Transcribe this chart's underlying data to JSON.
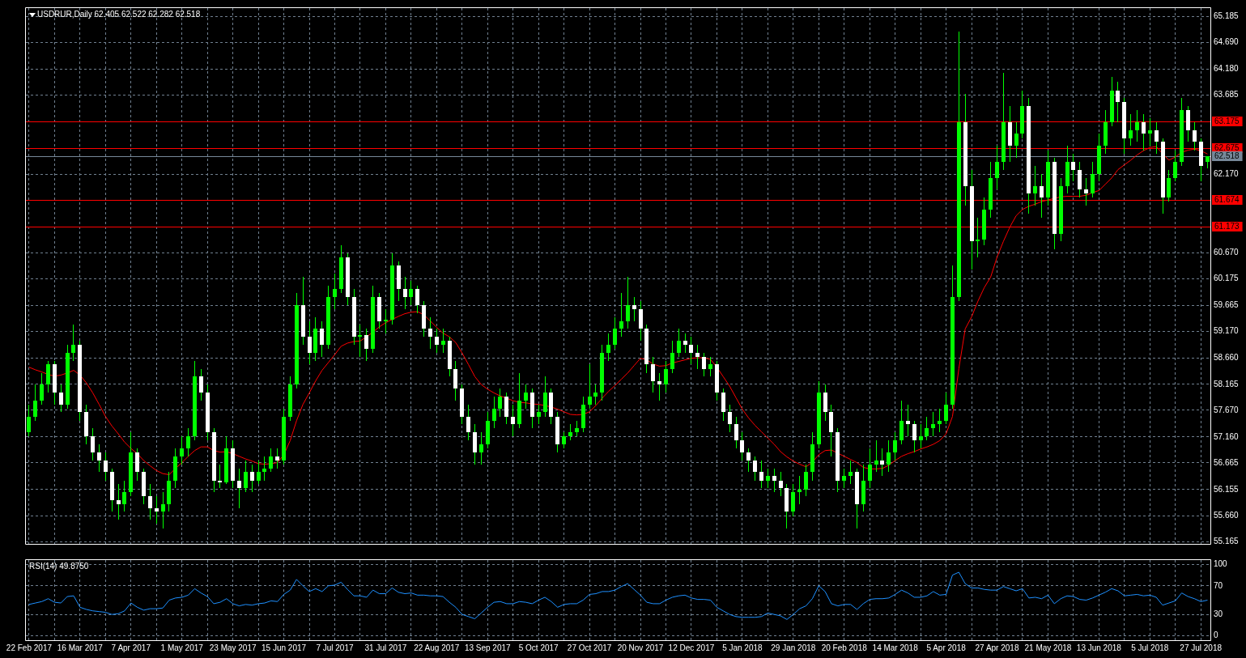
{
  "chart_data": [
    {
      "type": "candlestick",
      "title": "USDRUR,Daily 62.405 62.522 62.282 62.518",
      "color": "#00ff00",
      "tick_labels": "y",
      "grid": true,
      "categories": [
        null,
        null,
        null,
        null,
        null,
        null,
        null,
        null,
        null,
        null,
        null,
        null,
        null,
        null,
        null,
        null,
        null,
        null,
        null,
        null,
        null,
        null,
        null,
        null,
        null,
        null,
        null,
        null,
        null,
        null,
        null,
        null,
        null,
        null,
        null,
        null,
        null,
        null,
        null,
        null,
        null,
        null,
        null,
        null,
        null,
        null,
        null,
        null,
        null,
        null,
        null,
        null,
        null,
        null,
        null,
        null,
        null,
        null,
        null,
        null,
        null,
        null,
        null,
        null,
        null,
        null,
        null,
        null,
        null,
        null,
        null,
        null,
        null,
        null,
        null,
        null,
        null,
        null,
        null,
        null,
        null,
        null,
        null,
        null,
        null,
        null,
        null,
        null,
        null,
        null,
        null,
        null,
        null,
        null,
        null,
        null,
        null,
        null,
        null,
        null,
        null,
        null,
        null,
        null,
        null,
        null,
        null,
        null,
        null,
        null,
        null,
        null,
        null,
        null,
        null,
        null,
        null,
        null,
        null,
        null,
        null,
        null,
        null,
        null,
        null,
        null,
        null,
        null,
        null,
        null,
        null,
        null,
        null,
        null,
        null,
        null,
        null,
        null,
        null,
        null,
        null,
        null,
        null,
        null,
        null,
        null,
        null,
        null,
        null,
        null,
        null,
        null,
        null,
        null,
        null,
        null,
        null,
        null,
        null,
        null,
        null,
        null,
        null,
        null,
        null,
        null,
        null,
        null,
        null,
        null,
        null,
        null,
        null,
        null,
        null,
        null,
        null,
        null,
        null,
        null,
        null,
        null,
        null,
        null,
        null,
        null
      ],
      "ohlc": [
        [
          57.25,
          57.78,
          57.17,
          57.55
        ],
        [
          57.55,
          58.16,
          57.47,
          57.85
        ],
        [
          57.85,
          58.38,
          57.78,
          58.16
        ],
        [
          58.16,
          58.61,
          58.0,
          58.54
        ],
        [
          58.54,
          58.61,
          57.78,
          58.0
        ],
        [
          58.0,
          58.16,
          57.63,
          57.78
        ],
        [
          57.78,
          58.92,
          57.7,
          58.76
        ],
        [
          58.76,
          59.3,
          58.61,
          58.92
        ],
        [
          58.92,
          58.99,
          57.47,
          57.63
        ],
        [
          57.63,
          57.78,
          57.02,
          57.17
        ],
        [
          57.17,
          57.32,
          56.71,
          56.87
        ],
        [
          56.87,
          57.02,
          56.49,
          56.71
        ],
        [
          56.71,
          56.87,
          56.33,
          56.49
        ],
        [
          56.49,
          56.56,
          55.73,
          55.96
        ],
        [
          55.96,
          56.26,
          55.58,
          55.88
        ],
        [
          55.88,
          56.33,
          55.73,
          56.11
        ],
        [
          56.11,
          57.25,
          56.03,
          56.87
        ],
        [
          56.87,
          56.94,
          56.33,
          56.49
        ],
        [
          56.49,
          56.56,
          55.88,
          56.03
        ],
        [
          56.03,
          56.26,
          55.58,
          55.8
        ],
        [
          55.8,
          56.03,
          55.5,
          55.73
        ],
        [
          55.73,
          56.11,
          55.42,
          55.88
        ],
        [
          55.88,
          56.49,
          55.73,
          56.33
        ],
        [
          56.33,
          56.94,
          56.18,
          56.79
        ],
        [
          56.79,
          57.17,
          56.64,
          56.94
        ],
        [
          56.94,
          57.32,
          56.79,
          57.17
        ],
        [
          57.17,
          58.61,
          57.09,
          58.31
        ],
        [
          58.31,
          58.46,
          57.85,
          58.0
        ],
        [
          58.0,
          58.16,
          57.09,
          57.25
        ],
        [
          57.25,
          57.32,
          56.11,
          56.33
        ],
        [
          56.33,
          56.64,
          56.18,
          56.3
        ],
        [
          56.3,
          57.17,
          56.26,
          56.94
        ],
        [
          56.94,
          57.09,
          56.18,
          56.33
        ],
        [
          56.33,
          56.56,
          55.8,
          56.18
        ],
        [
          56.18,
          56.71,
          56.11,
          56.49
        ],
        [
          56.49,
          56.64,
          56.11,
          56.33
        ],
        [
          56.33,
          56.71,
          56.26,
          56.49
        ],
        [
          56.49,
          56.79,
          56.33,
          56.56
        ],
        [
          56.56,
          56.94,
          56.49,
          56.79
        ],
        [
          56.79,
          56.94,
          56.56,
          56.71
        ],
        [
          56.71,
          57.7,
          56.64,
          57.55
        ],
        [
          57.55,
          58.31,
          57.47,
          58.16
        ],
        [
          58.16,
          59.9,
          58.08,
          59.67
        ],
        [
          59.67,
          60.21,
          58.92,
          59.07
        ],
        [
          59.07,
          59.37,
          58.54,
          58.76
        ],
        [
          58.76,
          59.45,
          58.61,
          59.22
        ],
        [
          59.22,
          59.37,
          58.69,
          58.92
        ],
        [
          58.92,
          60.05,
          58.84,
          59.83
        ],
        [
          59.83,
          60.28,
          59.6,
          59.98
        ],
        [
          59.98,
          60.81,
          59.9,
          60.59
        ],
        [
          60.59,
          60.66,
          59.67,
          59.83
        ],
        [
          59.83,
          59.98,
          58.92,
          59.07
        ],
        [
          59.07,
          59.3,
          58.69,
          59.1
        ],
        [
          59.1,
          59.22,
          58.61,
          58.84
        ],
        [
          58.84,
          60.05,
          58.76,
          59.83
        ],
        [
          59.83,
          59.9,
          59.22,
          59.37
        ],
        [
          59.37,
          59.6,
          59.14,
          59.4
        ],
        [
          59.4,
          60.66,
          59.3,
          60.43
        ],
        [
          60.43,
          60.51,
          59.75,
          59.98
        ],
        [
          59.98,
          60.21,
          59.6,
          59.83
        ],
        [
          59.83,
          60.13,
          59.67,
          59.98
        ],
        [
          59.98,
          60.05,
          59.52,
          59.67
        ],
        [
          59.67,
          59.75,
          59.07,
          59.22
        ],
        [
          59.22,
          59.45,
          58.84,
          59.07
        ],
        [
          59.07,
          59.22,
          58.76,
          58.92
        ],
        [
          58.92,
          59.22,
          58.76,
          58.99
        ],
        [
          58.99,
          59.07,
          58.31,
          58.46
        ],
        [
          58.46,
          58.61,
          57.85,
          58.08
        ],
        [
          58.08,
          58.16,
          57.4,
          57.55
        ],
        [
          57.55,
          57.78,
          57.09,
          57.25
        ],
        [
          57.25,
          57.4,
          56.64,
          56.87
        ],
        [
          56.87,
          57.25,
          56.64,
          57.02
        ],
        [
          57.02,
          57.63,
          56.94,
          57.47
        ],
        [
          57.47,
          57.93,
          57.32,
          57.7
        ],
        [
          57.7,
          58.08,
          57.55,
          57.93
        ],
        [
          57.93,
          58.0,
          57.4,
          57.55
        ],
        [
          57.55,
          57.78,
          57.17,
          57.4
        ],
        [
          57.4,
          58.38,
          57.32,
          57.85
        ],
        [
          57.85,
          58.16,
          57.7,
          58.0
        ],
        [
          58.0,
          58.08,
          57.32,
          57.55
        ],
        [
          57.55,
          57.78,
          57.4,
          57.63
        ],
        [
          57.63,
          58.31,
          57.55,
          58.0
        ],
        [
          58.0,
          58.08,
          57.4,
          57.55
        ],
        [
          57.55,
          57.63,
          56.87,
          57.02
        ],
        [
          57.02,
          57.25,
          56.94,
          57.17
        ],
        [
          57.17,
          57.4,
          57.09,
          57.25
        ],
        [
          57.25,
          57.47,
          57.17,
          57.32
        ],
        [
          57.32,
          57.93,
          57.25,
          57.78
        ],
        [
          57.78,
          58.54,
          57.7,
          57.93
        ],
        [
          57.93,
          58.16,
          57.78,
          58.0
        ],
        [
          58.0,
          58.92,
          57.85,
          58.76
        ],
        [
          58.76,
          59.14,
          58.61,
          58.92
        ],
        [
          58.92,
          59.45,
          58.84,
          59.22
        ],
        [
          59.22,
          59.9,
          59.07,
          59.37
        ],
        [
          59.37,
          60.21,
          59.22,
          59.67
        ],
        [
          59.67,
          59.83,
          59.37,
          59.6
        ],
        [
          59.6,
          59.75,
          58.99,
          59.22
        ],
        [
          59.22,
          59.3,
          58.38,
          58.54
        ],
        [
          58.54,
          58.69,
          58.0,
          58.23
        ],
        [
          58.23,
          58.38,
          57.85,
          58.16
        ],
        [
          58.16,
          58.61,
          58.0,
          58.46
        ],
        [
          58.46,
          58.99,
          58.38,
          58.76
        ],
        [
          58.76,
          59.22,
          58.69,
          58.99
        ],
        [
          58.99,
          59.14,
          58.76,
          58.92
        ],
        [
          58.92,
          59.07,
          58.54,
          58.76
        ],
        [
          58.76,
          58.92,
          58.46,
          58.69
        ],
        [
          58.69,
          58.76,
          58.31,
          58.46
        ],
        [
          58.46,
          58.69,
          58.31,
          58.54
        ],
        [
          58.54,
          58.61,
          57.85,
          58.0
        ],
        [
          58.0,
          58.08,
          57.47,
          57.63
        ],
        [
          57.63,
          57.78,
          57.25,
          57.4
        ],
        [
          57.4,
          57.55,
          56.94,
          57.09
        ],
        [
          57.09,
          57.25,
          56.71,
          56.87
        ],
        [
          56.87,
          56.94,
          56.49,
          56.71
        ],
        [
          56.71,
          56.79,
          56.33,
          56.49
        ],
        [
          56.49,
          56.71,
          56.18,
          56.33
        ],
        [
          56.33,
          56.56,
          56.18,
          56.41
        ],
        [
          56.41,
          56.56,
          56.11,
          56.33
        ],
        [
          56.33,
          56.49,
          56.03,
          56.18
        ],
        [
          56.18,
          56.26,
          55.42,
          55.73
        ],
        [
          55.73,
          56.26,
          55.65,
          56.11
        ],
        [
          56.11,
          56.41,
          55.88,
          56.15
        ],
        [
          56.15,
          56.64,
          56.03,
          56.49
        ],
        [
          56.49,
          57.25,
          56.33,
          57.02
        ],
        [
          57.02,
          58.23,
          56.94,
          58.0
        ],
        [
          58.0,
          58.16,
          57.47,
          57.63
        ],
        [
          57.63,
          57.78,
          56.79,
          57.25
        ],
        [
          57.25,
          57.32,
          56.11,
          56.33
        ],
        [
          56.33,
          56.56,
          56.18,
          56.41
        ],
        [
          56.41,
          56.71,
          56.26,
          56.49
        ],
        [
          56.49,
          56.56,
          55.42,
          55.88
        ],
        [
          55.88,
          56.64,
          55.73,
          56.33
        ],
        [
          56.33,
          56.94,
          56.18,
          56.64
        ],
        [
          56.64,
          57.09,
          56.49,
          56.71
        ],
        [
          56.71,
          56.94,
          56.41,
          56.64
        ],
        [
          56.64,
          57.09,
          56.49,
          56.87
        ],
        [
          56.87,
          57.25,
          56.71,
          57.09
        ],
        [
          57.09,
          57.85,
          57.02,
          57.47
        ],
        [
          57.47,
          57.78,
          57.17,
          57.4
        ],
        [
          57.4,
          57.47,
          56.87,
          57.09
        ],
        [
          57.09,
          57.4,
          56.94,
          57.17
        ],
        [
          57.17,
          57.55,
          57.09,
          57.32
        ],
        [
          57.32,
          57.63,
          57.17,
          57.4
        ],
        [
          57.4,
          57.7,
          57.25,
          57.47
        ],
        [
          57.47,
          58.0,
          57.4,
          57.78
        ],
        [
          57.78,
          60.43,
          57.7,
          59.83
        ],
        [
          59.83,
          64.9,
          59.75,
          63.17
        ],
        [
          63.17,
          63.7,
          61.57,
          61.95
        ],
        [
          61.95,
          62.26,
          60.36,
          60.89
        ],
        [
          60.89,
          61.34,
          60.59,
          60.92
        ],
        [
          60.92,
          61.72,
          60.81,
          61.5
        ],
        [
          61.5,
          62.41,
          61.34,
          62.1
        ],
        [
          62.1,
          62.71,
          61.88,
          62.41
        ],
        [
          62.41,
          64.11,
          62.26,
          63.17
        ],
        [
          63.17,
          63.47,
          62.41,
          62.71
        ],
        [
          62.71,
          63.17,
          62.48,
          62.94
        ],
        [
          62.94,
          63.77,
          62.86,
          63.47
        ],
        [
          63.47,
          63.62,
          61.42,
          61.8
        ],
        [
          61.8,
          62.33,
          61.57,
          61.95
        ],
        [
          61.95,
          62.18,
          61.34,
          61.72
        ],
        [
          61.72,
          62.63,
          61.57,
          62.41
        ],
        [
          62.41,
          62.48,
          60.74,
          61.04
        ],
        [
          61.04,
          62.1,
          60.89,
          61.95
        ],
        [
          61.95,
          62.71,
          61.8,
          62.41
        ],
        [
          62.41,
          62.56,
          62.03,
          62.26
        ],
        [
          62.26,
          62.41,
          61.72,
          61.88
        ],
        [
          61.88,
          62.1,
          61.57,
          61.8
        ],
        [
          61.8,
          62.41,
          61.72,
          62.18
        ],
        [
          62.18,
          62.94,
          62.03,
          62.71
        ],
        [
          62.71,
          63.39,
          62.56,
          63.17
        ],
        [
          63.17,
          64.03,
          63.09,
          63.77
        ],
        [
          63.77,
          63.93,
          63.17,
          63.55
        ],
        [
          63.55,
          63.62,
          62.56,
          62.86
        ],
        [
          62.86,
          63.32,
          62.71,
          63.01
        ],
        [
          63.01,
          63.39,
          62.79,
          63.17
        ],
        [
          63.17,
          63.32,
          62.63,
          62.94
        ],
        [
          62.94,
          63.24,
          62.71,
          63.01
        ],
        [
          63.01,
          63.17,
          62.56,
          62.79
        ],
        [
          62.79,
          62.86,
          61.42,
          61.72
        ],
        [
          61.72,
          62.26,
          61.65,
          62.1
        ],
        [
          62.1,
          62.63,
          62.03,
          62.41
        ],
        [
          62.41,
          63.62,
          62.33,
          63.39
        ],
        [
          63.39,
          63.47,
          62.79,
          63.01
        ],
        [
          63.01,
          63.17,
          62.63,
          62.79
        ],
        [
          62.79,
          62.86,
          62.03,
          62.33
        ],
        [
          62.405,
          62.522,
          62.282,
          62.518
        ]
      ],
      "colors": [
        "#00ff00",
        "#00ff00",
        "#00ff00",
        "#00ff00",
        "#ffffff",
        "#ffffff",
        "#00ff00",
        "#00ff00",
        "#ffffff",
        "#ffffff",
        "#ffffff",
        "#ffffff",
        "#ffffff",
        "#ffffff",
        "#ffffff",
        "#00ff00",
        "#00ff00",
        "#ffffff",
        "#ffffff",
        "#ffffff",
        "#ffffff",
        "#00ff00",
        "#00ff00",
        "#00ff00",
        "#00ff00",
        "#00ff00",
        "#00ff00",
        "#ffffff",
        "#ffffff",
        "#ffffff",
        "#ffffff",
        "#00ff00",
        "#ffffff",
        "#ffffff",
        "#00ff00",
        "#ffffff",
        "#00ff00",
        "#00ff00",
        "#00ff00",
        "#ffffff",
        "#00ff00",
        "#00ff00",
        "#00ff00",
        "#ffffff",
        "#ffffff",
        "#00ff00",
        "#ffffff",
        "#00ff00",
        "#00ff00",
        "#00ff00",
        "#ffffff",
        "#ffffff",
        "#00ff00",
        "#ffffff",
        "#00ff00",
        "#ffffff",
        "#00ff00",
        "#00ff00",
        "#ffffff",
        "#ffffff",
        "#00ff00",
        "#ffffff",
        "#ffffff",
        "#ffffff",
        "#ffffff",
        "#00ff00",
        "#ffffff",
        "#ffffff",
        "#ffffff",
        "#ffffff",
        "#ffffff",
        "#00ff00",
        "#00ff00",
        "#00ff00",
        "#00ff00",
        "#ffffff",
        "#ffffff",
        "#00ff00",
        "#00ff00",
        "#ffffff",
        "#00ff00",
        "#00ff00",
        "#ffffff",
        "#ffffff",
        "#00ff00",
        "#00ff00",
        "#00ff00",
        "#00ff00",
        "#00ff00",
        "#00ff00",
        "#00ff00",
        "#00ff00",
        "#00ff00",
        "#00ff00",
        "#00ff00",
        "#ffffff",
        "#ffffff",
        "#ffffff",
        "#ffffff",
        "#ffffff",
        "#00ff00",
        "#00ff00",
        "#00ff00",
        "#ffffff",
        "#ffffff",
        "#ffffff",
        "#ffffff",
        "#00ff00",
        "#ffffff",
        "#ffffff",
        "#ffffff",
        "#ffffff",
        "#ffffff",
        "#ffffff",
        "#ffffff",
        "#ffffff",
        "#00ff00",
        "#ffffff",
        "#ffffff",
        "#ffffff",
        "#00ff00",
        "#00ff00",
        "#00ff00",
        "#00ff00",
        "#00ff00",
        "#ffffff",
        "#ffffff",
        "#ffffff",
        "#00ff00",
        "#00ff00",
        "#ffffff",
        "#00ff00",
        "#00ff00",
        "#00ff00",
        "#ffffff",
        "#00ff00",
        "#00ff00",
        "#00ff00",
        "#ffffff",
        "#ffffff",
        "#00ff00",
        "#00ff00",
        "#00ff00",
        "#00ff00",
        "#00ff00",
        "#00ff00",
        "#00ff00",
        "#ffffff",
        "#ffffff",
        "#00ff00",
        "#00ff00",
        "#00ff00",
        "#00ff00",
        "#00ff00",
        "#ffffff",
        "#00ff00",
        "#00ff00",
        "#ffffff",
        "#00ff00",
        "#ffffff",
        "#00ff00",
        "#ffffff",
        "#00ff00",
        "#00ff00",
        "#ffffff",
        "#ffffff",
        "#ffffff",
        "#00ff00",
        "#00ff00",
        "#00ff00",
        "#00ff00",
        "#ffffff",
        "#ffffff",
        "#00ff00",
        "#00ff00",
        "#ffffff",
        "#00ff00",
        "#ffffff",
        "#ffffff",
        "#00ff00",
        "#00ff00",
        "#00ff00",
        "#ffffff",
        "#ffffff",
        "#ffffff",
        "#00ff00"
      ],
      "series": [
        {
          "type": "line",
          "color": "#ff0000",
          "values": [
            58.49,
            58.44,
            58.4,
            58.35,
            58.32,
            58.34,
            58.38,
            58.43,
            58.34,
            58.19,
            58.0,
            57.78,
            57.55,
            57.37,
            57.22,
            57.06,
            56.94,
            56.84,
            56.71,
            56.61,
            56.52,
            56.46,
            56.44,
            56.56,
            56.67,
            56.79,
            56.9,
            56.97,
            56.97,
            56.9,
            56.87,
            56.88,
            56.84,
            56.79,
            56.74,
            56.7,
            56.65,
            56.64,
            56.65,
            56.67,
            56.82,
            57.09,
            57.47,
            57.78,
            58.0,
            58.23,
            58.43,
            58.58,
            58.73,
            58.89,
            58.95,
            58.98,
            58.99,
            59.07,
            59.16,
            59.26,
            59.34,
            59.4,
            59.46,
            59.51,
            59.54,
            59.55,
            59.49,
            59.37,
            59.25,
            59.14,
            59.07,
            58.96,
            58.76,
            58.54,
            58.31,
            58.16,
            58.07,
            58.0,
            57.94,
            57.9,
            57.85,
            57.82,
            57.81,
            57.79,
            57.78,
            57.76,
            57.73,
            57.69,
            57.64,
            57.59,
            57.58,
            57.59,
            57.64,
            57.76,
            57.9,
            58.03,
            58.14,
            58.26,
            58.38,
            58.52,
            58.66,
            58.63,
            58.55,
            58.51,
            58.52,
            58.57,
            58.6,
            58.63,
            58.66,
            58.67,
            58.67,
            58.64,
            58.49,
            58.31,
            58.13,
            57.91,
            57.69,
            57.52,
            57.38,
            57.26,
            57.14,
            57.02,
            56.88,
            56.78,
            56.7,
            56.64,
            56.59,
            56.68,
            56.82,
            56.9,
            56.91,
            56.85,
            56.79,
            56.73,
            56.67,
            56.58,
            56.55,
            56.55,
            56.56,
            56.62,
            56.71,
            56.79,
            56.84,
            56.88,
            56.93,
            56.97,
            57.02,
            57.09,
            57.22,
            57.55,
            58.46,
            59.22,
            59.45,
            59.75,
            60.01,
            60.21,
            60.59,
            60.89,
            61.16,
            61.38,
            61.5,
            61.56,
            61.6,
            61.65,
            61.68,
            61.71,
            61.74,
            61.75,
            61.75,
            61.75,
            61.77,
            61.82,
            61.86,
            61.98,
            62.1,
            62.26,
            62.35,
            62.44,
            62.54,
            62.62,
            62.68,
            62.7,
            62.56,
            62.44,
            62.5,
            62.59,
            62.63,
            62.65,
            62.62,
            62.56
          ]
        }
      ],
      "ylim": [
        55.12,
        65.34
      ],
      "yticks": [
        65.185,
        {
          "value": 64.69,
          "label": "64.690"
        },
        {
          "value": 64.18,
          "label": "64.180"
        },
        63.685,
        {
          "value": 62.17,
          "label": "62.170"
        },
        {
          "value": 60.67,
          "label": "60.670"
        },
        60.175,
        59.665,
        {
          "value": 59.17,
          "label": "59.170"
        },
        {
          "value": 58.66,
          "label": "58.660"
        },
        58.165,
        {
          "value": 57.67,
          "label": "57.670"
        },
        {
          "value": 57.16,
          "label": "57.160"
        },
        56.665,
        56.155,
        {
          "value": 55.66,
          "label": "55.660"
        },
        55.165
      ],
      "ref_lines": [
        {
          "axis": "y",
          "value": 63.175,
          "label": "63.175",
          "color": "#ff0000"
        },
        {
          "axis": "y",
          "value": 62.675,
          "label": "62.675",
          "color": "#ff0000"
        },
        {
          "axis": "y",
          "value": 61.674,
          "label": "61.674",
          "color": "#ff0000"
        },
        {
          "axis": "y",
          "value": 61.173,
          "label": "61.173",
          "color": "#ff0000"
        },
        {
          "axis": "y",
          "value": 62.518,
          "label": "62.518",
          "color": "#778899"
        }
      ]
    },
    {
      "type": "line",
      "title": "RSI(14) 49.8750",
      "grid": true,
      "categories": [
        "22 Feb 2017",
        null,
        null,
        null,
        null,
        null,
        null,
        null,
        "16 Mar 2017",
        null,
        null,
        null,
        null,
        null,
        null,
        null,
        "7 Apr 2017",
        null,
        null,
        null,
        null,
        null,
        null,
        null,
        "1 May 2017",
        null,
        null,
        null,
        null,
        null,
        null,
        null,
        "23 May 2017",
        null,
        null,
        null,
        null,
        null,
        null,
        null,
        "15 Jun 2017",
        null,
        null,
        null,
        null,
        null,
        null,
        null,
        "7 Jul 2017",
        null,
        null,
        null,
        null,
        null,
        null,
        null,
        "31 Jul 2017",
        null,
        null,
        null,
        null,
        null,
        null,
        null,
        "22 Aug 2017",
        null,
        null,
        null,
        null,
        null,
        null,
        null,
        "13 Sep 2017",
        null,
        null,
        null,
        null,
        null,
        null,
        null,
        "5 Oct 2017",
        null,
        null,
        null,
        null,
        null,
        null,
        null,
        "27 Oct 2017",
        null,
        null,
        null,
        null,
        null,
        null,
        null,
        "20 Nov 2017",
        null,
        null,
        null,
        null,
        null,
        null,
        null,
        "12 Dec 2017",
        null,
        null,
        null,
        null,
        null,
        null,
        null,
        "5 Jan 2018",
        null,
        null,
        null,
        null,
        null,
        null,
        null,
        "29 Jan 2018",
        null,
        null,
        null,
        null,
        null,
        null,
        null,
        "20 Feb 2018",
        null,
        null,
        null,
        null,
        null,
        null,
        null,
        "14 Mar 2018",
        null,
        null,
        null,
        null,
        null,
        null,
        null,
        "5 Apr 2018",
        null,
        null,
        null,
        null,
        null,
        null,
        null,
        "27 Apr 2018",
        null,
        null,
        null,
        null,
        null,
        null,
        null,
        "21 May 2018",
        null,
        null,
        null,
        null,
        null,
        null,
        null,
        "13 Jun 2018",
        null,
        null,
        null,
        null,
        null,
        null,
        null,
        "5 Jul 2018",
        null,
        null,
        null,
        null,
        null,
        null,
        null,
        "27 Jul 2018",
        null
      ],
      "series": [
        {
          "color": "#1e90ff",
          "values": [
            44,
            46,
            48,
            52,
            47,
            46,
            55,
            56,
            40,
            37,
            35,
            34,
            33,
            30,
            31,
            35,
            46,
            40,
            36,
            38,
            38,
            39,
            50,
            53,
            54,
            57,
            66,
            60,
            55,
            45,
            47,
            52,
            45,
            42,
            44,
            43,
            45,
            46,
            49,
            48,
            58,
            64,
            79,
            70,
            62,
            66,
            62,
            70,
            71,
            75,
            65,
            56,
            56,
            54,
            64,
            59,
            59,
            67,
            61,
            59,
            60,
            57,
            57,
            56,
            56,
            55,
            47,
            40,
            30,
            27,
            24,
            32,
            40,
            47,
            48,
            45,
            45,
            48,
            47,
            45,
            50,
            54,
            48,
            40,
            44,
            45,
            45,
            50,
            58,
            59,
            62,
            62,
            64,
            69,
            73,
            65,
            57,
            47,
            45,
            45,
            50,
            54,
            56,
            57,
            53,
            51,
            51,
            50,
            40,
            35,
            30,
            27,
            26,
            26,
            26,
            27,
            32,
            30,
            28,
            23,
            30,
            38,
            42,
            52,
            70,
            62,
            45,
            42,
            44,
            44,
            37,
            45,
            51,
            52,
            52,
            53,
            58,
            64,
            60,
            54,
            54,
            56,
            62,
            57,
            58,
            85,
            89,
            73,
            67,
            67,
            65,
            64,
            64,
            69,
            66,
            63,
            66,
            53,
            54,
            52,
            57,
            45,
            52,
            56,
            55,
            51,
            50,
            53,
            57,
            61,
            66,
            63,
            56,
            57,
            58,
            56,
            57,
            54,
            43,
            46,
            49,
            60,
            55,
            52,
            48,
            49.875
          ]
        }
      ],
      "ylim": [
        -6,
        106
      ],
      "yticks": [
        0,
        30,
        70,
        100
      ]
    }
  ]
}
